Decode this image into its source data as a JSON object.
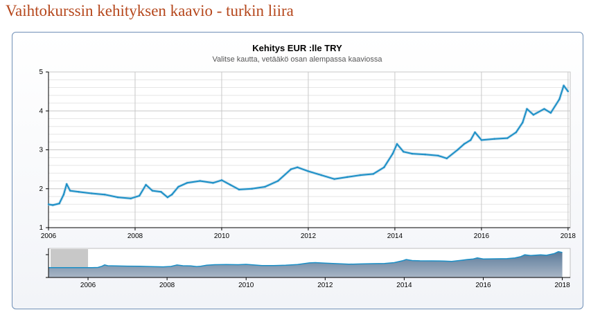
{
  "page": {
    "heading": "Vaihtokurssin kehityksen kaavio - turkin liira"
  },
  "chart_data": {
    "type": "line",
    "title": "Kehitys EUR :lle TRY",
    "subtitle": "Valitse kautta, vetääkö osan alempassa kaaviossa",
    "xlabel": "",
    "ylabel": "",
    "xlim": [
      2006.0,
      2018.05
    ],
    "ylim": [
      1,
      5
    ],
    "x_ticks": [
      "2006",
      "2008",
      "2010",
      "2012",
      "2014",
      "2016",
      "2018"
    ],
    "y_ticks": [
      "1",
      "2",
      "3",
      "4",
      "5"
    ],
    "grid": true,
    "legend": "none",
    "series_color": "#1b8fc6",
    "series": [
      {
        "x": [
          2006.0,
          2006.1,
          2006.25,
          2006.35,
          2006.42,
          2006.5,
          2006.7,
          2007.0,
          2007.3,
          2007.6,
          2007.9,
          2008.1,
          2008.25,
          2008.4,
          2008.6,
          2008.75,
          2008.85,
          2009.0,
          2009.2,
          2009.5,
          2009.8,
          2010.0,
          2010.2,
          2010.4,
          2010.7,
          2011.0,
          2011.3,
          2011.6,
          2011.75,
          2012.0,
          2012.3,
          2012.6,
          2012.9,
          2013.2,
          2013.5,
          2013.75,
          2013.95,
          2014.05,
          2014.2,
          2014.4,
          2014.7,
          2015.0,
          2015.2,
          2015.45,
          2015.6,
          2015.75,
          2015.85,
          2016.0,
          2016.3,
          2016.6,
          2016.8,
          2016.95,
          2017.05,
          2017.2,
          2017.45,
          2017.6,
          2017.8,
          2017.9,
          2018.0
        ],
        "y": [
          1.6,
          1.58,
          1.62,
          1.85,
          2.12,
          1.95,
          1.92,
          1.88,
          1.85,
          1.78,
          1.75,
          1.82,
          2.1,
          1.95,
          1.92,
          1.78,
          1.85,
          2.05,
          2.15,
          2.2,
          2.15,
          2.22,
          2.1,
          1.98,
          2.0,
          2.05,
          2.2,
          2.5,
          2.55,
          2.45,
          2.35,
          2.25,
          2.3,
          2.35,
          2.38,
          2.55,
          2.9,
          3.15,
          2.95,
          2.9,
          2.88,
          2.85,
          2.78,
          3.0,
          3.15,
          3.25,
          3.45,
          3.25,
          3.28,
          3.3,
          3.45,
          3.7,
          4.05,
          3.9,
          4.05,
          3.95,
          4.3,
          4.65,
          4.5
        ]
      }
    ],
    "navigator": {
      "x_ticks": [
        "2006",
        "2008",
        "2010",
        "2012",
        "2014",
        "2016",
        "2018"
      ]
    }
  }
}
